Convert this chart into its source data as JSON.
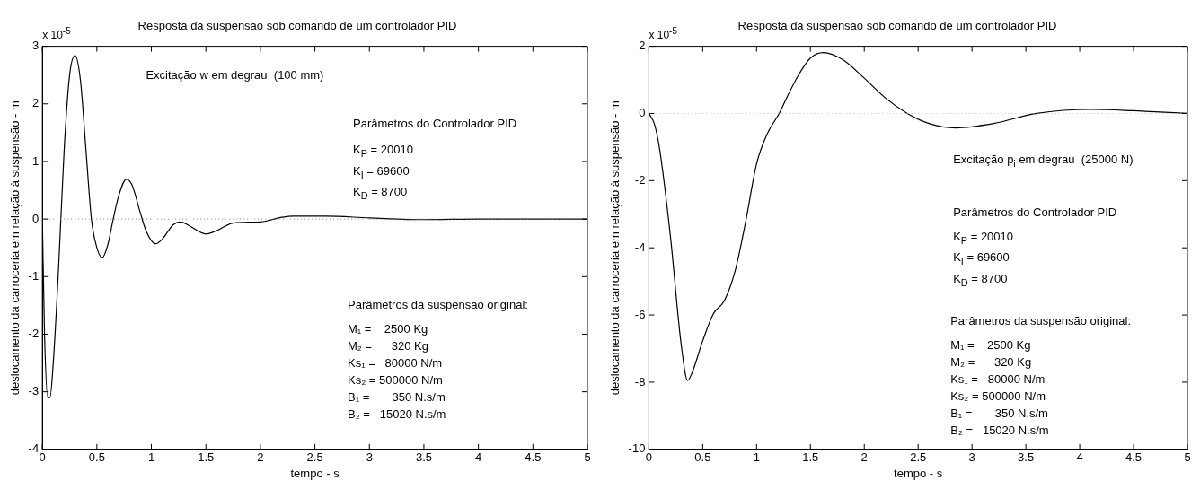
{
  "chart_data": [
    {
      "type": "line",
      "title": "Resposta da suspensão sob comando de um controlador PID",
      "xlabel": "tempo - s",
      "ylabel": "deslocamento da carroceria em relação à suspensão - m",
      "x": [
        0,
        0.02,
        0.05,
        0.07,
        0.1,
        0.15,
        0.2,
        0.25,
        0.3,
        0.35,
        0.4,
        0.45,
        0.5,
        0.55,
        0.6,
        0.65,
        0.7,
        0.77,
        0.82,
        0.9,
        0.95,
        1.04,
        1.1,
        1.2,
        1.27,
        1.35,
        1.5,
        1.6,
        1.75,
        2.0,
        2.2,
        2.3,
        2.6,
        3.0,
        3.5,
        4,
        4.5,
        5
      ],
      "series": [
        {
          "color": "#000000",
          "values": [
            0,
            -2.0,
            -3.1,
            -3.1,
            -2.5,
            -0.8,
            1.2,
            2.5,
            2.84,
            2.4,
            1.2,
            0.0,
            -0.5,
            -0.67,
            -0.45,
            0.0,
            0.4,
            0.69,
            0.6,
            0.1,
            -0.2,
            -0.43,
            -0.35,
            -0.1,
            -0.05,
            -0.12,
            -0.26,
            -0.2,
            -0.07,
            -0.05,
            0.03,
            0.05,
            0.05,
            0.02,
            -0.01,
            0,
            0,
            0
          ]
        }
      ],
      "xlim": [
        0,
        5
      ],
      "xticks": [
        0,
        0.5,
        1,
        1.5,
        2,
        2.5,
        3,
        3.5,
        4,
        4.5,
        5
      ],
      "ylim": [
        -4,
        3
      ],
      "yticks": [
        -4,
        -3,
        -2,
        -1,
        0,
        1,
        2,
        3
      ],
      "grid": false,
      "legend": false,
      "marker": "none",
      "line_style": "solid",
      "ref_lines": [
        {
          "axis": "y",
          "value": 0,
          "color": "#808080",
          "line_style": "dotted"
        }
      ],
      "annotations": [
        "x 10$^{-5}$",
        "Excitação w em degrau  (100 mm)",
        "Parâmetros do Controlador PID",
        "K$_{P}$ = 20010\nK$_{I}$ = 69600\nK$_{D}$ = 8700",
        "Parâmetros da suspensão original:",
        "M₁ =    2500 Kg\nM₂ =      320 Kg\nKs₁ =   80000 N/m\nKs₂ = 500000 N/m\nB₁ =       350 N.s/m\nB₂ =   15020 N.s/m"
      ]
    },
    {
      "type": "line",
      "title": "Resposta da suspensão sob comando de um controlador PID",
      "xlabel": "tempo - s",
      "ylabel": "deslocamento da carroceria em relação à suspensão - m",
      "x": [
        0,
        0.05,
        0.1,
        0.2,
        0.3,
        0.36,
        0.4,
        0.5,
        0.6,
        0.7,
        0.8,
        0.9,
        1.0,
        1.1,
        1.21,
        1.3,
        1.4,
        1.5,
        1.62,
        1.8,
        2.0,
        2.2,
        2.4,
        2.6,
        2.85,
        3.2,
        3.6,
        4.1,
        4.5,
        5
      ],
      "series": [
        {
          "color": "#000000",
          "values": [
            0,
            -0.3,
            -1.06,
            -3.65,
            -6.87,
            -7.95,
            -7.73,
            -6.77,
            -5.96,
            -5.58,
            -4.7,
            -3.2,
            -1.5,
            -0.6,
            0,
            0.6,
            1.2,
            1.65,
            1.81,
            1.6,
            1.05,
            0.45,
            0,
            -0.3,
            -0.43,
            -0.3,
            0,
            0.12,
            0.08,
            0
          ]
        }
      ],
      "xlim": [
        0,
        5
      ],
      "xticks": [
        0,
        0.5,
        1,
        1.5,
        2,
        2.5,
        3,
        3.5,
        4,
        4.5,
        5
      ],
      "ylim": [
        -10,
        2
      ],
      "yticks": [
        -10,
        -8,
        -6,
        -4,
        -2,
        0,
        2
      ],
      "grid": false,
      "legend": false,
      "marker": "none",
      "line_style": "solid",
      "ref_lines": [
        {
          "axis": "y",
          "value": 0,
          "color": "#c0c0c0",
          "line_style": "dotted"
        }
      ],
      "annotations": [
        "x 10$^{-5}$",
        "Excitação p$_{i}$ em degrau  (25000 N)",
        "Parâmetros do Controlador PID",
        "K$_{P}$ = 20010\nK$_{I}$ = 69600\nK$_{D}$ = 8700",
        "Parâmetros da suspensão original:",
        "M₁ =    2500 Kg\nM₂ =      320 Kg\nKs₁ =   80000 N/m\nKs₂ = 500000 N/m\nB₁ =       350 N.s/m\nB₂ =   15020 N.s/m"
      ]
    }
  ]
}
